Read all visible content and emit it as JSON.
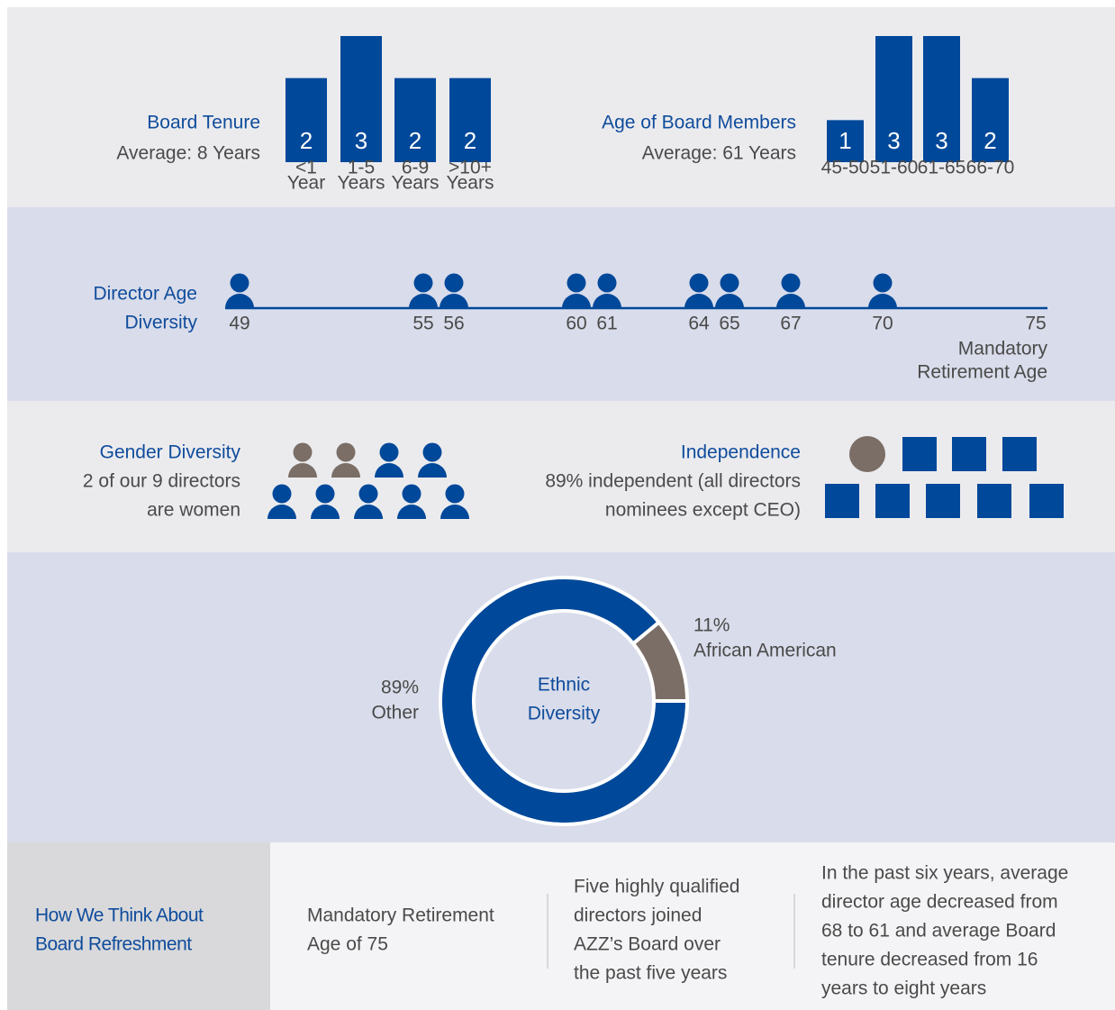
{
  "chart_data": [
    {
      "type": "bar",
      "title": "Board Tenure",
      "subtitle": "Average: 8 Years",
      "categories": [
        [
          "<1",
          "Year"
        ],
        [
          "1-5",
          "Years"
        ],
        [
          "6-9",
          "Years"
        ],
        [
          ">10+",
          "Years"
        ]
      ],
      "values": [
        2,
        3,
        2,
        2
      ],
      "color": "#00489a"
    },
    {
      "type": "bar",
      "title": "Age of Board Members",
      "subtitle": "Average: 61 Years",
      "categories": [
        [
          "45-50"
        ],
        [
          "51-60"
        ],
        [
          "61-65"
        ],
        [
          "66-70"
        ]
      ],
      "values": [
        1,
        3,
        3,
        2
      ],
      "color": "#00489a"
    },
    {
      "type": "timeline",
      "title": [
        "Director Age",
        "Diversity"
      ],
      "values": [
        49,
        55,
        56,
        60,
        61,
        64,
        65,
        67,
        70
      ],
      "xlim": [
        49,
        75
      ],
      "xticks": [
        75
      ],
      "annotation": [
        "Mandatory",
        "Retirement Age"
      ],
      "color": "#00489a"
    },
    {
      "type": "icons",
      "title": "Gender Diversity",
      "subtitle": [
        "2 of our 9 directors",
        "are women"
      ],
      "values": [
        2,
        7
      ],
      "colors": [
        "#7a6e66",
        "#00489a"
      ]
    },
    {
      "type": "squares",
      "title": "Independence",
      "subtitle": [
        "89% independent (all directors",
        "nominees except CEO)"
      ],
      "values": [
        1,
        8
      ],
      "colors": [
        "#7a6e66",
        "#00489a"
      ]
    },
    {
      "type": "pie",
      "title": [
        "Ethnic",
        "Diversity"
      ],
      "categories": [
        "African American",
        "Other"
      ],
      "values": [
        11,
        89
      ],
      "value_labels": [
        "11%",
        "89%"
      ],
      "colors": [
        "#7a6e66",
        "#00489a"
      ]
    }
  ],
  "refreshment": {
    "heading": [
      "How We Think About",
      "Board Refreshment"
    ],
    "items": [
      [
        "Mandatory Retirement",
        "Age of 75"
      ],
      [
        "Five highly qualified",
        "directors joined",
        "AZZ’s Board over",
        "the past five years"
      ],
      [
        "In the past six years, average",
        "director age decreased from",
        "68 to 61 and average Board",
        "tenure decreased from 16",
        "years to eight years"
      ]
    ]
  }
}
